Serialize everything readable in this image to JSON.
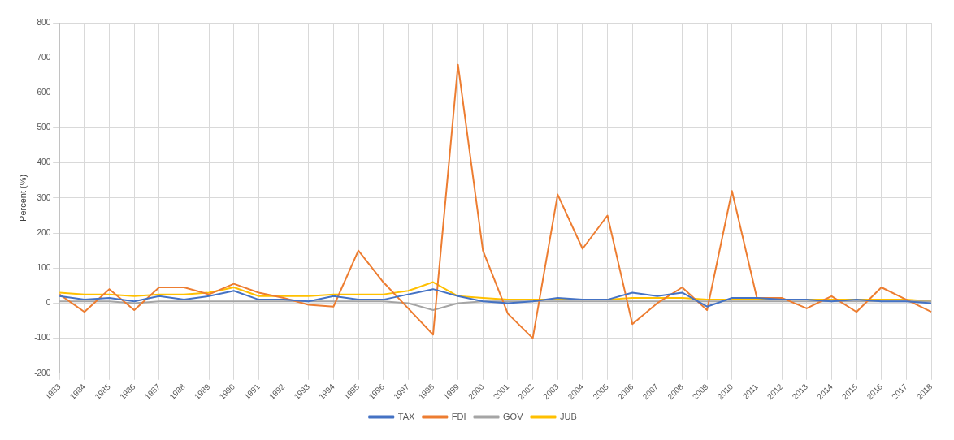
{
  "chart_data": {
    "type": "line",
    "ylabel": "Percent (%)",
    "categories": [
      "1983",
      "1984",
      "1985",
      "1986",
      "1987",
      "1988",
      "1989",
      "1990",
      "1991",
      "1992",
      "1993",
      "1994",
      "1995",
      "1996",
      "1997",
      "1998",
      "1999",
      "2000",
      "2001",
      "2002",
      "2003",
      "2004",
      "2005",
      "2006",
      "2007",
      "2008",
      "2009",
      "2010",
      "2011",
      "2012",
      "2013",
      "2014",
      "2015",
      "2016",
      "2017",
      "2018"
    ],
    "series": [
      {
        "name": "TAX",
        "color": "#4472c4",
        "values": [
          20,
          10,
          15,
          5,
          20,
          10,
          20,
          35,
          10,
          10,
          5,
          20,
          10,
          10,
          25,
          40,
          20,
          5,
          0,
          5,
          15,
          10,
          10,
          30,
          20,
          30,
          -10,
          15,
          15,
          10,
          10,
          5,
          10,
          5,
          5,
          0
        ]
      },
      {
        "name": "FDI",
        "color": "#ed7d31",
        "values": [
          25,
          -25,
          40,
          -20,
          45,
          45,
          25,
          55,
          30,
          15,
          -5,
          -10,
          150,
          60,
          -15,
          -90,
          680,
          150,
          -30,
          -100,
          310,
          155,
          250,
          -60,
          0,
          45,
          -20,
          320,
          15,
          15,
          -15,
          20,
          -25,
          45,
          10,
          -25
        ]
      },
      {
        "name": "GOV",
        "color": "#a5a5a5",
        "values": [
          5,
          5,
          5,
          0,
          5,
          5,
          5,
          5,
          5,
          5,
          5,
          5,
          5,
          5,
          0,
          -20,
          0,
          5,
          5,
          5,
          5,
          5,
          5,
          5,
          5,
          5,
          5,
          5,
          5,
          5,
          5,
          5,
          5,
          5,
          5,
          5
        ]
      },
      {
        "name": "JUB",
        "color": "#ffc000",
        "values": [
          30,
          25,
          25,
          20,
          25,
          25,
          30,
          45,
          20,
          20,
          20,
          25,
          25,
          25,
          35,
          60,
          20,
          15,
          10,
          10,
          10,
          10,
          10,
          15,
          15,
          15,
          10,
          10,
          10,
          10,
          10,
          10,
          10,
          10,
          10,
          5
        ]
      }
    ],
    "ylim": [
      -200,
      800
    ],
    "yticks": [
      -200,
      -100,
      0,
      100,
      200,
      300,
      400,
      500,
      600,
      700,
      800
    ],
    "grid": true,
    "legend": "bottom",
    "marker": "none",
    "line_style": "solid"
  }
}
